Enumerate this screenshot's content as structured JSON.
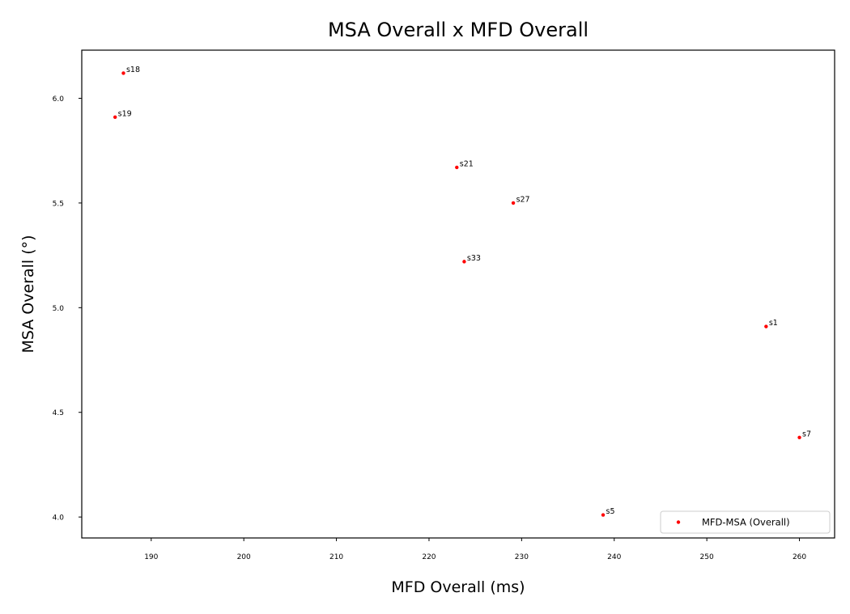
{
  "chart_data": {
    "type": "scatter",
    "title": "MSA Overall x MFD Overall",
    "xlabel": "MFD Overall (ms)",
    "ylabel": "MSA Overall (°)",
    "xlim": [
      182.5,
      263.8
    ],
    "ylim": [
      3.9,
      6.23
    ],
    "xticks": [
      190,
      200,
      210,
      220,
      230,
      240,
      250,
      260
    ],
    "yticks": [
      4.0,
      4.5,
      5.0,
      5.5,
      6.0
    ],
    "xtick_labels": [
      "190",
      "200",
      "210",
      "220",
      "230",
      "240",
      "250",
      "260"
    ],
    "ytick_labels": [
      "4.0",
      "4.5",
      "5.0",
      "5.5",
      "6.0"
    ],
    "legend_position": "lower right",
    "series": [
      {
        "name": "MFD-MSA (Overall)",
        "color": "#ff0000",
        "marker": "circle",
        "points": [
          {
            "label": "s18",
            "x": 187.0,
            "y": 6.12
          },
          {
            "label": "s19",
            "x": 186.1,
            "y": 5.91
          },
          {
            "label": "s21",
            "x": 223.0,
            "y": 5.67
          },
          {
            "label": "s27",
            "x": 229.1,
            "y": 5.5
          },
          {
            "label": "s33",
            "x": 223.8,
            "y": 5.22
          },
          {
            "label": "s1",
            "x": 256.4,
            "y": 4.91
          },
          {
            "label": "s7",
            "x": 260.0,
            "y": 4.38
          },
          {
            "label": "s5",
            "x": 238.8,
            "y": 4.01
          }
        ]
      }
    ]
  }
}
